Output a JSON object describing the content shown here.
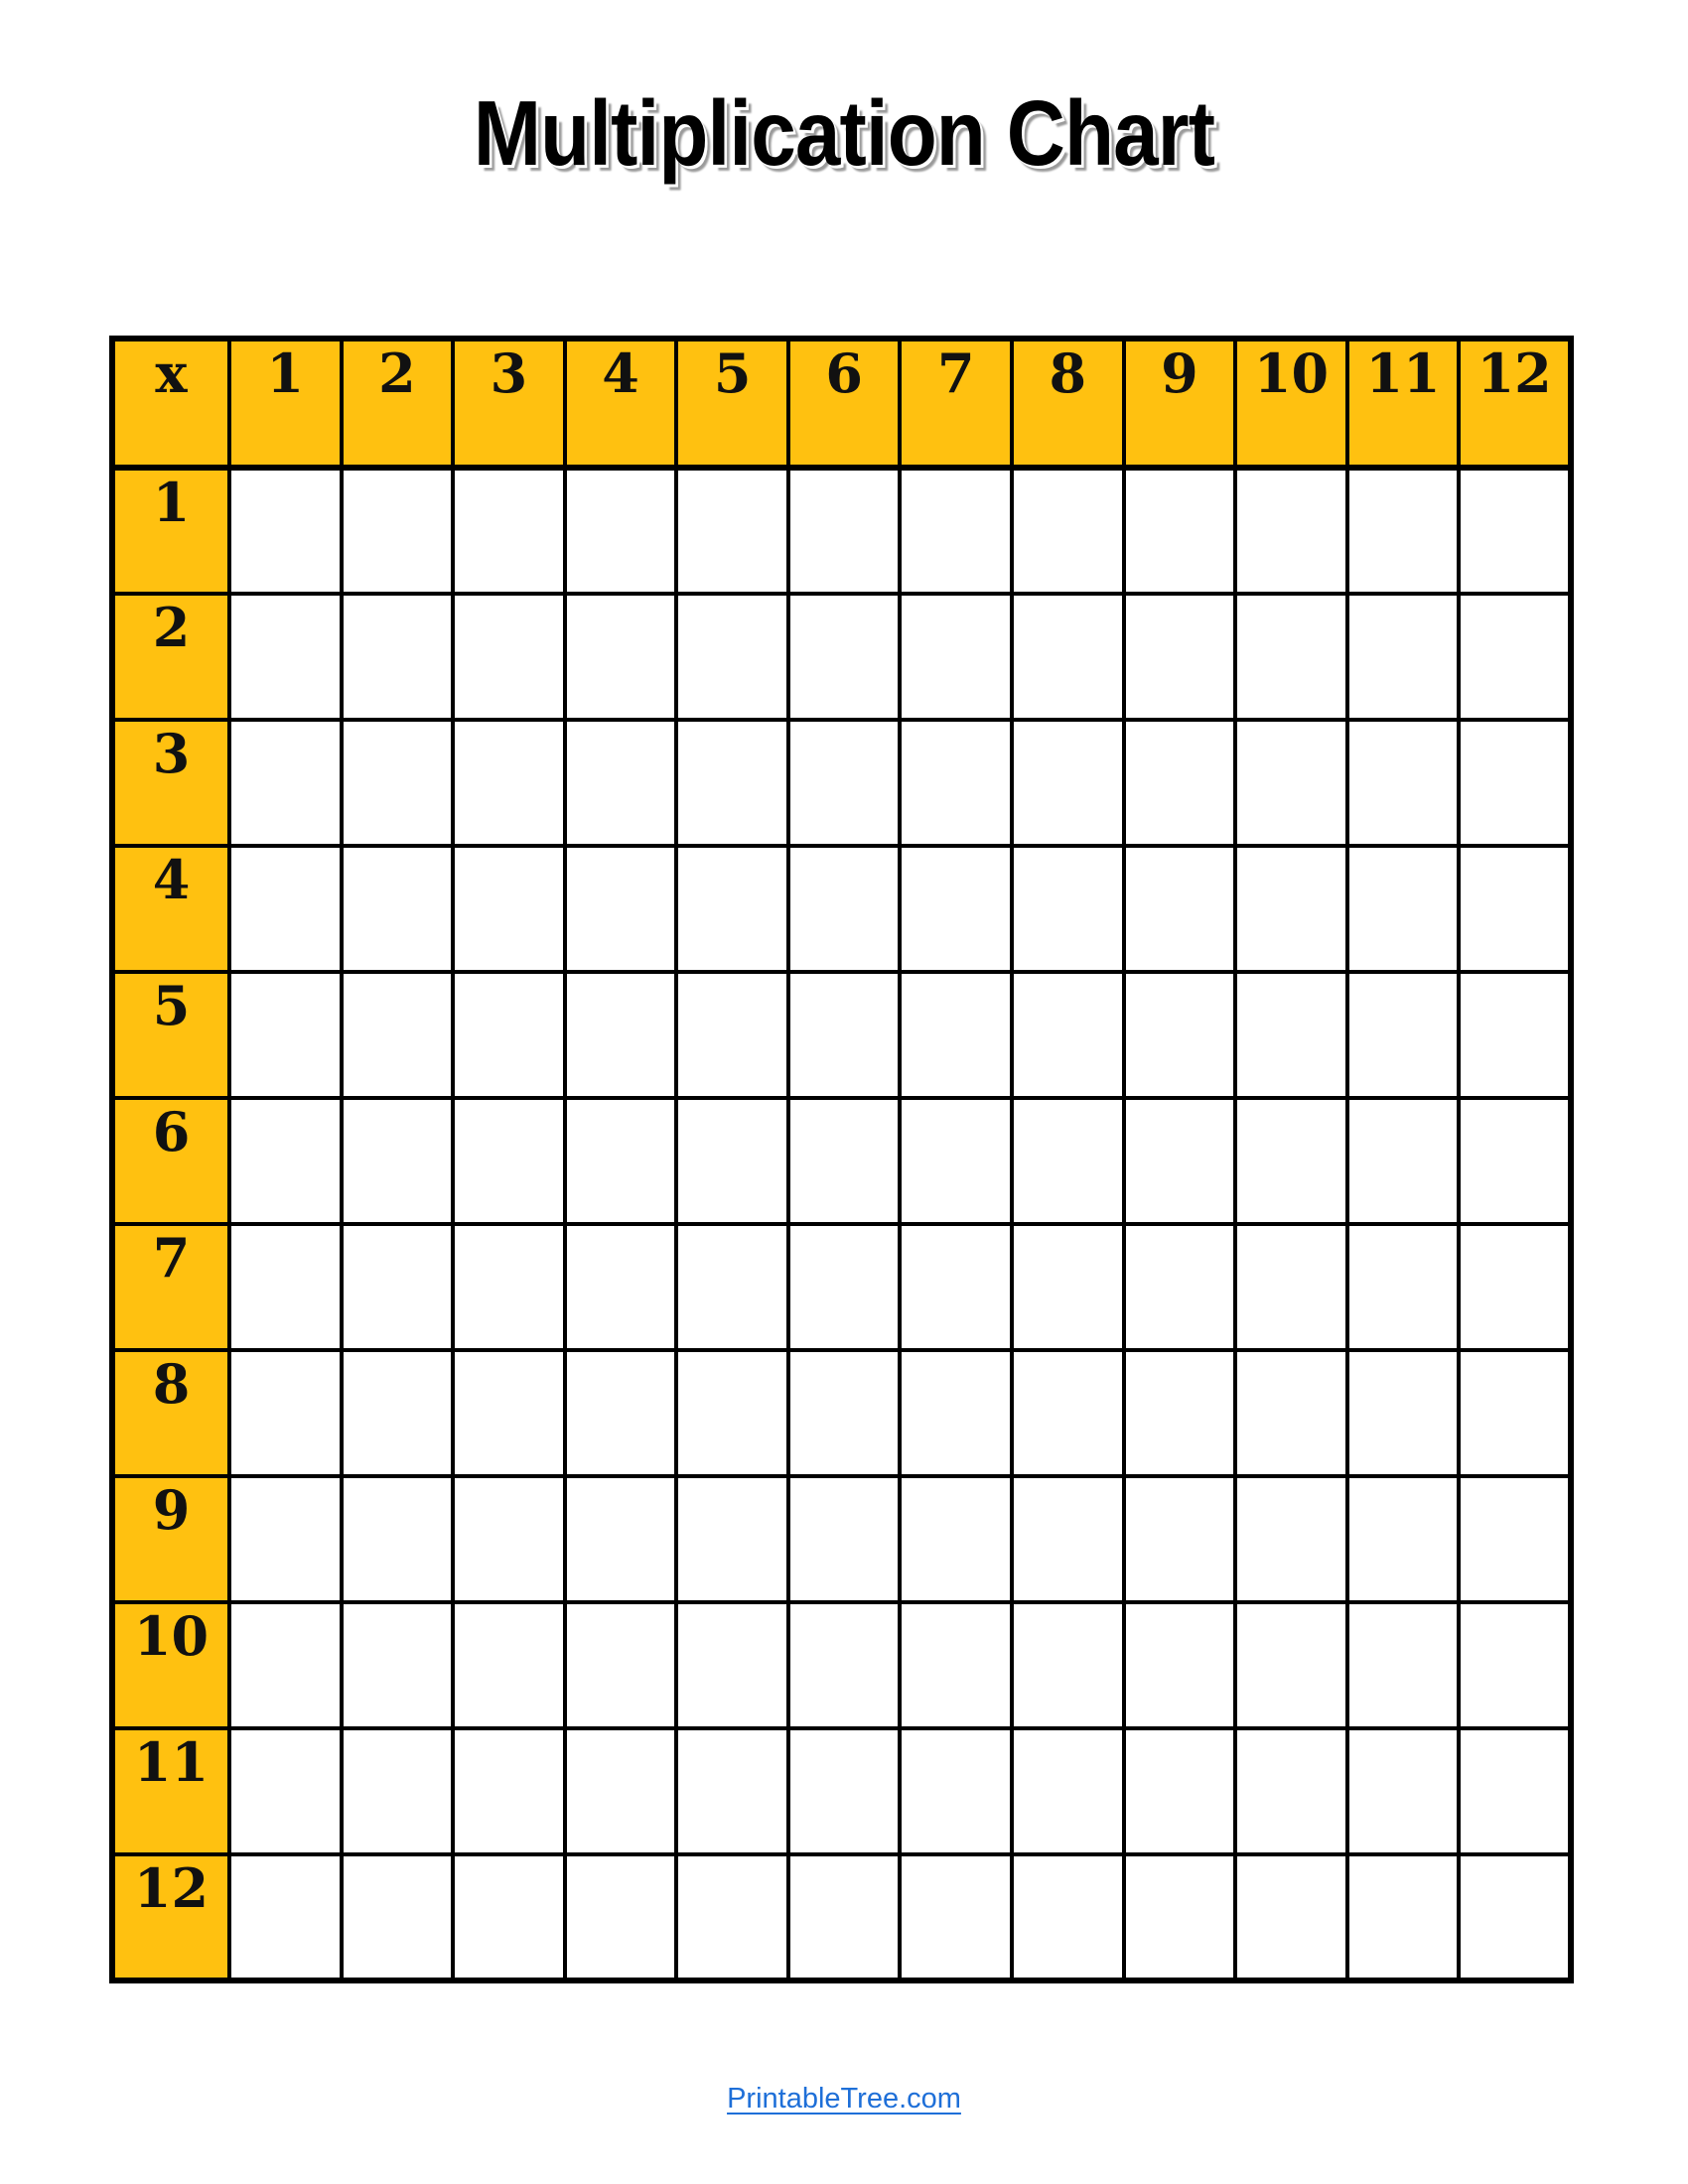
{
  "title": {
    "text": "Multiplication Chart"
  },
  "table": {
    "corner_label": "x",
    "column_headers": [
      "1",
      "2",
      "3",
      "4",
      "5",
      "6",
      "7",
      "8",
      "9",
      "10",
      "11",
      "12"
    ],
    "row_headers": [
      "1",
      "2",
      "3",
      "4",
      "5",
      "6",
      "7",
      "8",
      "9",
      "10",
      "11",
      "12"
    ],
    "cell_value": "",
    "header_fill": "#FFC110",
    "border_color": "#000000"
  },
  "footer": {
    "link_text": "PrintableTree.com",
    "link_color": "#1E6FD8"
  }
}
